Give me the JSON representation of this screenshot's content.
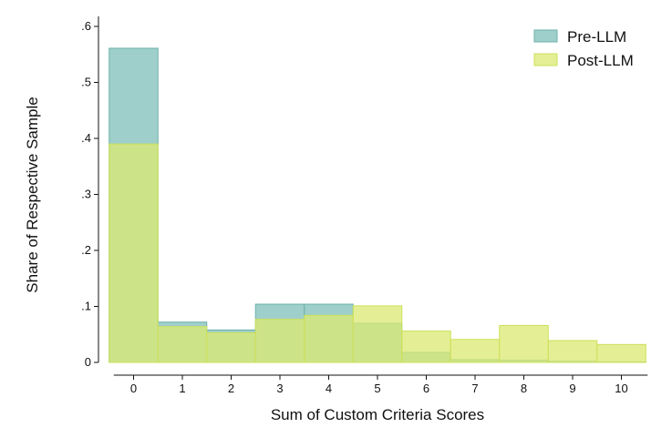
{
  "chart_data": {
    "type": "bar",
    "categories": [
      "0",
      "1",
      "2",
      "3",
      "4",
      "5",
      "6",
      "7",
      "8",
      "9",
      "10"
    ],
    "xlabel": "Sum of Custom Criteria Scores",
    "ylabel": "Share of Respective Sample",
    "ylim": [
      0,
      0.62
    ],
    "yticks": [
      {
        "value": 0,
        "label": "0"
      },
      {
        "value": 0.1,
        "label": ".1"
      },
      {
        "value": 0.2,
        "label": ".2"
      },
      {
        "value": 0.3,
        "label": ".3"
      },
      {
        "value": 0.4,
        "label": ".4"
      },
      {
        "value": 0.5,
        "label": ".5"
      },
      {
        "value": 0.6,
        "label": ".6"
      }
    ],
    "grid": false,
    "legend": "top-right",
    "series": [
      {
        "name": "Pre-LLM",
        "values": [
          0.561,
          0.072,
          0.058,
          0.104,
          0.104,
          0.07,
          0.018,
          0.005,
          0.004,
          0.002,
          0.001
        ],
        "fill": "#9fcfca",
        "stroke": "#6db0ab"
      },
      {
        "name": "Post-LLM",
        "values": [
          0.39,
          0.064,
          0.053,
          0.077,
          0.084,
          0.101,
          0.056,
          0.041,
          0.066,
          0.039,
          0.032
        ],
        "fill": "#dbea72",
        "stroke": "#cde05a",
        "opacity": 0.75
      }
    ]
  }
}
